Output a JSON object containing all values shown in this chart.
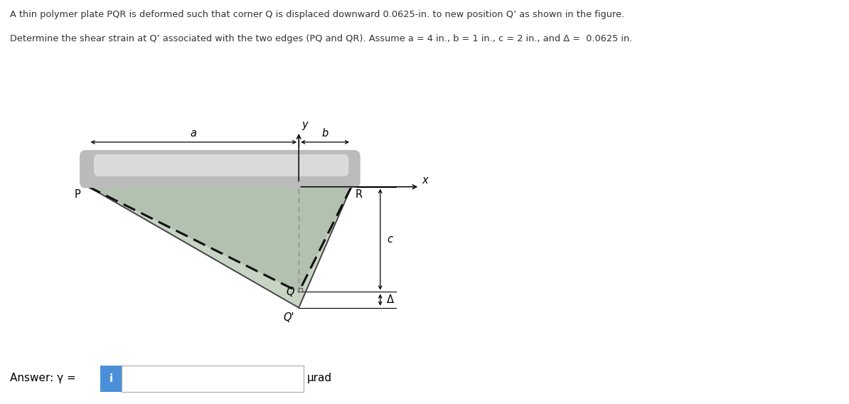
{
  "title_line1": "A thin polymer plate PQR is deformed such that corner Q is displaced downward 0.0625-in. to new position Q’ as shown in the figure.",
  "title_line2": "Determine the shear strain at Q’ associated with the two edges (PQ and QR). Assume a = 4 in., b = 1 in., c = 2 in., and Δ =  0.0625 in.",
  "bg_color": "#ffffff",
  "plate_fill_dark": "#9aaa9a",
  "plate_fill_light": "#c8d4c4",
  "bar_dark": "#888888",
  "bar_light": "#cccccc",
  "dashed_color": "#111111",
  "solid_color": "#444444",
  "P": [
    -4,
    0
  ],
  "R": [
    1,
    0
  ],
  "Q": [
    0,
    -2
  ],
  "Qprime": [
    0,
    -2.3
  ],
  "label_fontsize": 10.5,
  "answer_box_color": "#4a90d9",
  "answer_text": "Answer: γ =",
  "unit_text": "μrad"
}
